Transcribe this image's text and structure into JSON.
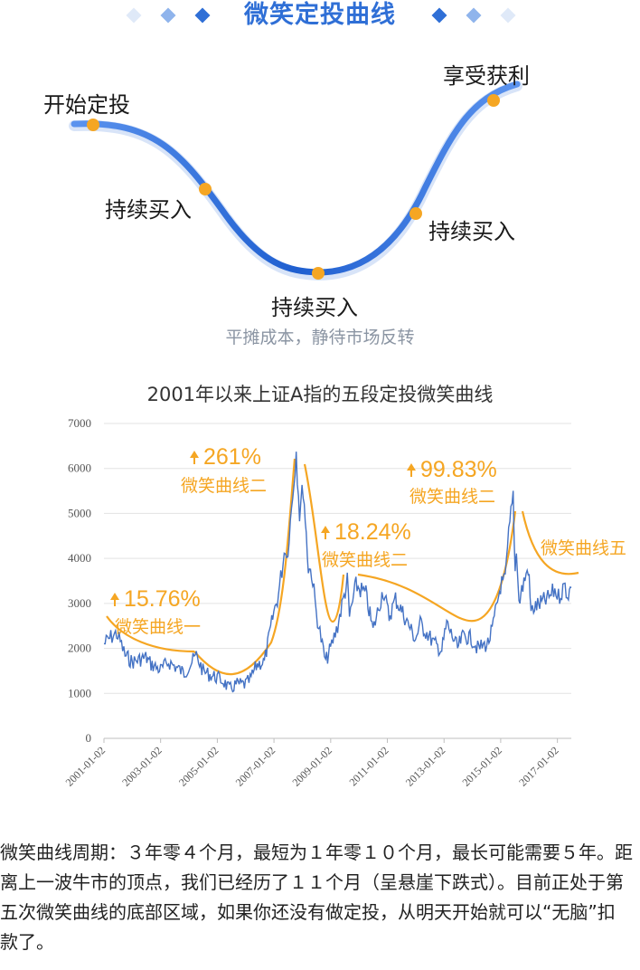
{
  "header": {
    "title": "微笑定投曲线",
    "diamond_colors": [
      "#dfe9f8",
      "#8fb4ec",
      "#2f6fd6"
    ]
  },
  "concept": {
    "labels": {
      "start": "开始定投",
      "buy1": "持续买入",
      "buy2": "持续买入",
      "buy3": "持续买入",
      "profit": "享受获利"
    },
    "subtitle": "平摊成本，静待市场反转",
    "curve_color": "#2a6ddb",
    "dot_color": "#f5a623"
  },
  "chart_data": {
    "type": "line",
    "title": "2001年以来上证A指的五段定投微笑曲线",
    "ylim": [
      0,
      7000
    ],
    "yticks": [
      "0",
      "1000",
      "2000",
      "3000",
      "4000",
      "5000",
      "6000",
      "7000"
    ],
    "xlim": [
      "2001-01-02",
      "2017-06-30"
    ],
    "xticks": [
      "2001-01-02",
      "2003-01-02",
      "2005-01-02",
      "2007-01-02",
      "2009-01-02",
      "2011-01-02",
      "2013-01-02",
      "2015-01-02",
      "2017-01-02"
    ],
    "grid": true,
    "series": [
      {
        "color": "#4472c4",
        "points": [
          [
            "2001-01-02",
            2100
          ],
          [
            "2001-04-01",
            2250
          ],
          [
            "2001-06-15",
            2330
          ],
          [
            "2001-08-01",
            2150
          ],
          [
            "2001-10-01",
            1850
          ],
          [
            "2002-01-01",
            1700
          ],
          [
            "2002-06-25",
            1800
          ],
          [
            "2002-09-01",
            1650
          ],
          [
            "2003-01-01",
            1520
          ],
          [
            "2003-04-15",
            1700
          ],
          [
            "2003-11-01",
            1450
          ],
          [
            "2004-04-07",
            1840
          ],
          [
            "2004-07-01",
            1500
          ],
          [
            "2004-09-15",
            1420
          ],
          [
            "2005-01-01",
            1350
          ],
          [
            "2005-04-01",
            1250
          ],
          [
            "2005-06-06",
            1080
          ],
          [
            "2005-09-01",
            1200
          ],
          [
            "2005-12-31",
            1200
          ],
          [
            "2006-03-01",
            1300
          ],
          [
            "2006-06-01",
            1650
          ],
          [
            "2006-09-01",
            1700
          ],
          [
            "2006-12-31",
            2800
          ],
          [
            "2007-03-01",
            3200
          ],
          [
            "2007-05-29",
            4300
          ],
          [
            "2007-06-15",
            4000
          ],
          [
            "2007-08-01",
            4800
          ],
          [
            "2007-10-16",
            6400
          ],
          [
            "2007-11-28",
            5000
          ],
          [
            "2008-01-14",
            5600
          ],
          [
            "2008-03-20",
            3800
          ],
          [
            "2008-05-01",
            3700
          ],
          [
            "2008-07-01",
            2800
          ],
          [
            "2008-09-01",
            2200
          ],
          [
            "2008-10-28",
            1700
          ],
          [
            "2009-01-01",
            2000
          ],
          [
            "2009-04-01",
            2500
          ],
          [
            "2009-08-04",
            3500
          ],
          [
            "2009-09-01",
            2700
          ],
          [
            "2009-11-24",
            3400
          ],
          [
            "2010-04-01",
            3200
          ],
          [
            "2010-07-02",
            2400
          ],
          [
            "2010-11-08",
            3300
          ],
          [
            "2011-01-25",
            2700
          ],
          [
            "2011-04-18",
            3100
          ],
          [
            "2011-08-01",
            2750
          ],
          [
            "2011-12-31",
            2200
          ],
          [
            "2012-03-01",
            2550
          ],
          [
            "2012-09-01",
            2100
          ],
          [
            "2012-12-04",
            1950
          ],
          [
            "2013-02-06",
            2550
          ],
          [
            "2013-06-25",
            2000
          ],
          [
            "2013-09-12",
            2300
          ],
          [
            "2013-12-31",
            2200
          ],
          [
            "2014-03-11",
            2000
          ],
          [
            "2014-07-21",
            2110
          ],
          [
            "2014-09-15",
            2400
          ],
          [
            "2014-12-31",
            3400
          ],
          [
            "2015-03-01",
            3500
          ],
          [
            "2015-04-15",
            4500
          ],
          [
            "2015-06-12",
            5400
          ],
          [
            "2015-07-08",
            3700
          ],
          [
            "2015-07-24",
            4300
          ],
          [
            "2015-08-26",
            3000
          ],
          [
            "2015-10-01",
            3300
          ],
          [
            "2015-12-23",
            3800
          ],
          [
            "2016-01-28",
            2800
          ],
          [
            "2016-03-01",
            2900
          ],
          [
            "2016-06-01",
            3000
          ],
          [
            "2016-09-01",
            3100
          ],
          [
            "2016-11-30",
            3300
          ],
          [
            "2017-01-16",
            3150
          ],
          [
            "2017-04-11",
            3400
          ],
          [
            "2017-05-11",
            3200
          ],
          [
            "2017-06-30",
            3350
          ]
        ]
      }
    ],
    "overlay_color": "#f5a623",
    "overlays": [
      {
        "label_pct": "15.76%",
        "label_name": "微笑曲线一"
      },
      {
        "label_pct": "261%",
        "label_name": "微笑曲线二"
      },
      {
        "label_pct": "18.24%",
        "label_name": "微笑曲线二"
      },
      {
        "label_pct": "99.83%",
        "label_name": "微笑曲线二"
      },
      {
        "label_pct": "",
        "label_name": "微笑曲线五"
      }
    ]
  },
  "paragraph": "微笑曲线周期：３年零４个月，最短为１年零１０个月，最长可能需要５年。距离上一波牛市的顶点，我们已经历了１１个月（呈悬崖下跌式）。目前正处于第五次微笑曲线的底部区域，如果你还没有做定投，从明天开始就可以“无脑”扣款了。"
}
